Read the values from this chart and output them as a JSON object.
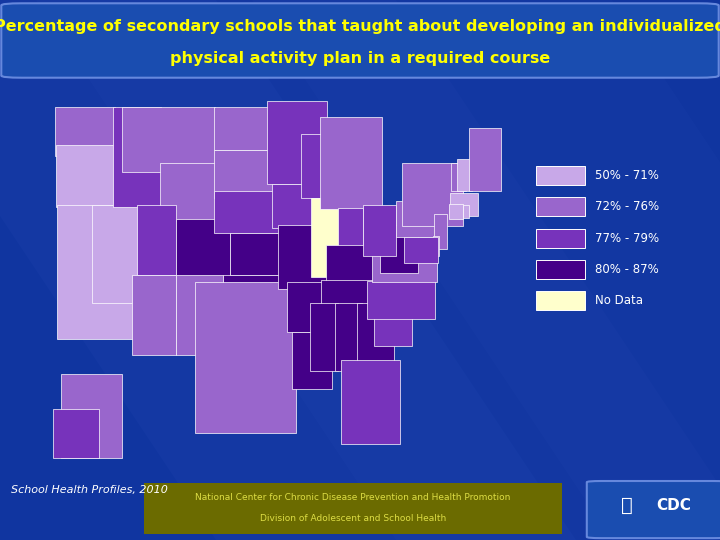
{
  "title_line1": "Percentage of secondary schools that taught about developing an individualized",
  "title_line2": "physical activity plan in a required course",
  "title_color": "#FFFF00",
  "title_fontsize": 12,
  "background_color": "#1035a0",
  "legend_labels": [
    "50% - 71%",
    "72% - 76%",
    "77% - 79%",
    "80% - 87%",
    "No Data"
  ],
  "legend_colors": [
    "#c8a8e8",
    "#9966cc",
    "#7733bb",
    "#440088",
    "#ffffcc"
  ],
  "footer_text1": "School Health Profiles, 2010",
  "footer_text2": "National Center for Chronic Disease Prevention and Health Promotion",
  "footer_text3": "Division of Adolescent and School Health",
  "state_categories": {
    "Washington": 2,
    "Oregon": 1,
    "California": 1,
    "Nevada": 1,
    "Idaho": 3,
    "Montana": 2,
    "Wyoming": 2,
    "Utah": 3,
    "Arizona": 2,
    "Colorado": 4,
    "New Mexico": 2,
    "North Dakota": 2,
    "South Dakota": 2,
    "Nebraska": 3,
    "Kansas": 4,
    "Oklahoma": 4,
    "Texas": 2,
    "Minnesota": 3,
    "Iowa": 3,
    "Missouri": 4,
    "Arkansas": 4,
    "Louisiana": 4,
    "Wisconsin": 3,
    "Illinois": 0,
    "Michigan": 2,
    "Indiana": 3,
    "Kentucky": 4,
    "Tennessee": 4,
    "Mississippi": 4,
    "Alabama": 4,
    "Georgia": 4,
    "Florida": 3,
    "South Carolina": 3,
    "North Carolina": 3,
    "Virginia": 2,
    "West Virginia": 4,
    "Ohio": 3,
    "Pennsylvania": 2,
    "New York": 2,
    "Vermont": 2,
    "New Hampshire": 1,
    "Maine": 2,
    "Massachusetts": 1,
    "Rhode Island": 1,
    "Connecticut": 1,
    "New Jersey": 2,
    "Delaware": 2,
    "Maryland": 3,
    "Alaska": 2,
    "Hawaii": 3
  },
  "category_colors": {
    "0": "#ffffcc",
    "1": "#c8a8e8",
    "2": "#9966cc",
    "3": "#7733bb",
    "4": "#440088"
  }
}
